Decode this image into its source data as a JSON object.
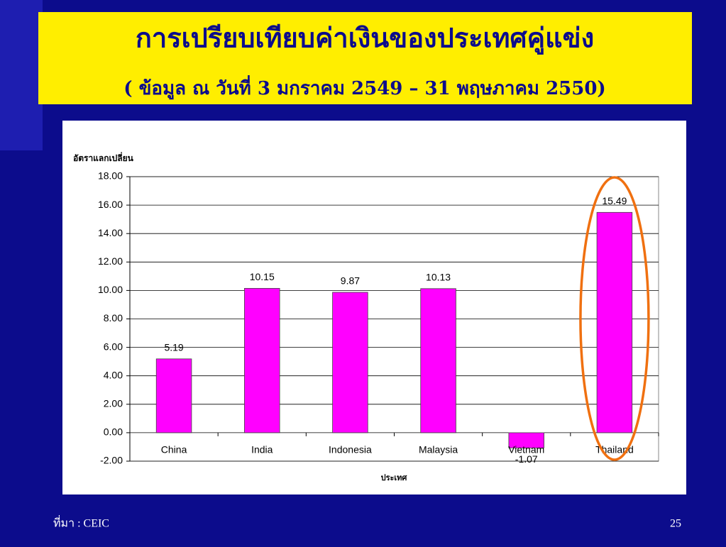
{
  "chart_data": {
    "type": "bar",
    "title": "การเปรียบเทียบค่าเงินของประเทศคู่แข่ง",
    "subtitle": "( ข้อมูล ณ วันที่ 3 มกราคม 2549 – 31 พฤษภาคม 2550)",
    "y_label": "อัตราแลกเปลี่ยน",
    "x_label": "ประเทศ",
    "categories": [
      "China",
      "India",
      "Indonesia",
      "Malaysia",
      "Vietnam",
      "Thailand"
    ],
    "values": [
      5.19,
      10.15,
      9.87,
      10.13,
      -1.07,
      15.49
    ],
    "color": "#ff00ff",
    "ylim": [
      -2,
      18
    ],
    "yticks": [
      {
        "value": -2,
        "label": "-2.00"
      },
      {
        "value": 0,
        "label": "0.00"
      },
      {
        "value": 2,
        "label": "2.00"
      },
      {
        "value": 4,
        "label": "4.00"
      },
      {
        "value": 6,
        "label": "6.00"
      },
      {
        "value": 8,
        "label": "8.00"
      },
      {
        "value": 10,
        "label": "10.00"
      },
      {
        "value": 12,
        "label": "12.00"
      },
      {
        "value": 14,
        "label": "14.00"
      },
      {
        "value": 16,
        "label": "16.00"
      },
      {
        "value": 18,
        "label": "18.00"
      }
    ],
    "grid": true
  },
  "footer": {
    "source": "ที่มา :  CEIC",
    "page_number": "25"
  }
}
